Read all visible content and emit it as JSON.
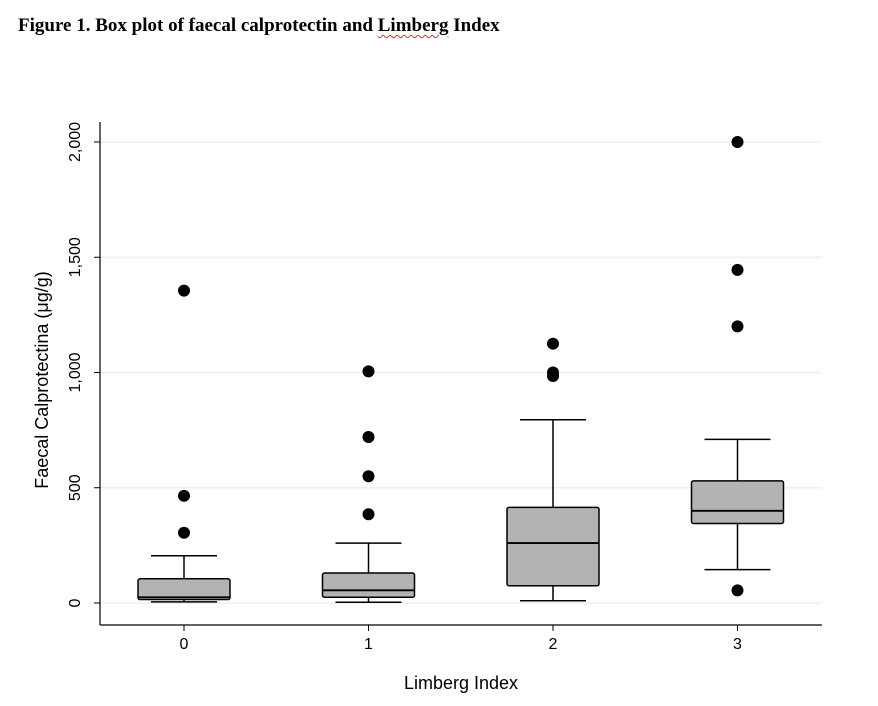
{
  "figure": {
    "title_prefix": "Figure 1. Box plot of faecal calprotectin and ",
    "title_underlined": "Limberg",
    "title_suffix": " Index"
  },
  "chart_data": {
    "type": "box",
    "xlabel": "Limberg Index",
    "ylabel": "Faecal Calprotectina (μg/g)",
    "ylim": [
      0,
      2000
    ],
    "yticks": [
      0,
      500,
      1000,
      1500,
      2000
    ],
    "ytick_labels": [
      "0",
      "500",
      "1,000",
      "1,500",
      "2,000"
    ],
    "grid": true,
    "colors": {
      "box_fill": "#b3b3b3",
      "grid": "#eaf1f1",
      "line": "#000000"
    },
    "categories": [
      "0",
      "1",
      "2",
      "3"
    ],
    "boxes": [
      {
        "category": "0",
        "whisker_low": 5,
        "q1": 15,
        "median": 25,
        "q3": 105,
        "whisker_high": 205,
        "outliers": [
          305,
          465,
          1355
        ]
      },
      {
        "category": "1",
        "whisker_low": 3,
        "q1": 25,
        "median": 55,
        "q3": 130,
        "whisker_high": 260,
        "outliers": [
          385,
          550,
          720,
          1005
        ]
      },
      {
        "category": "2",
        "whisker_low": 10,
        "q1": 75,
        "median": 260,
        "q3": 415,
        "whisker_high": 795,
        "outliers": [
          985,
          1000,
          1125
        ]
      },
      {
        "category": "3",
        "whisker_low": 145,
        "q1": 345,
        "median": 400,
        "q3": 530,
        "whisker_high": 710,
        "outliers": [
          55,
          1200,
          1445,
          2000
        ]
      }
    ]
  }
}
